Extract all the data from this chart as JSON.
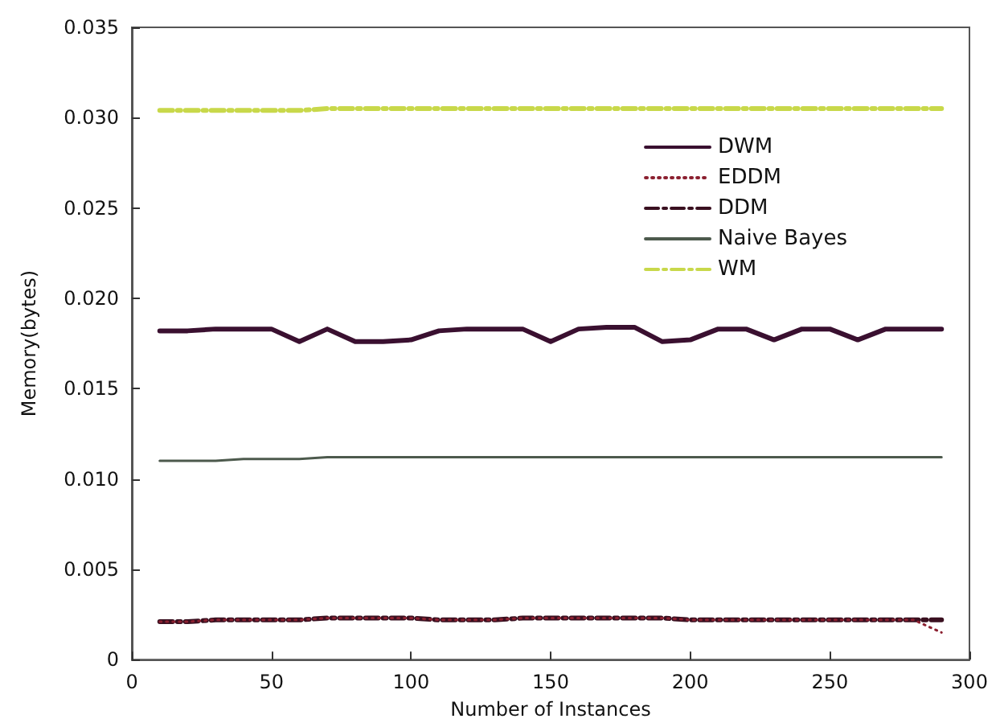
{
  "chart_data": {
    "type": "line",
    "xlabel": "Number of Instances",
    "ylabel": "Memory(bytes)",
    "x": [
      10,
      20,
      30,
      40,
      50,
      60,
      70,
      80,
      90,
      100,
      110,
      120,
      130,
      140,
      150,
      160,
      170,
      180,
      190,
      200,
      210,
      220,
      230,
      240,
      250,
      260,
      270,
      280,
      290
    ],
    "xlim": [
      0,
      300
    ],
    "xticks": [
      0,
      50,
      100,
      150,
      200,
      250,
      300
    ],
    "ylim": [
      0,
      0.035
    ],
    "yticks": [
      0,
      0.005,
      {
        "value": 0.01,
        "label": "0.010"
      },
      0.015,
      {
        "value": 0.02,
        "label": "0.020"
      },
      0.025,
      {
        "value": 0.03,
        "label": "0.030"
      },
      0.035
    ],
    "legend": "right",
    "grid": false,
    "series": [
      {
        "name": "DWM",
        "color": "#3a1030",
        "line_style": "solid",
        "values": [
          0.0182,
          0.0182,
          0.0183,
          0.0183,
          0.0183,
          0.0176,
          0.0183,
          0.0176,
          0.0176,
          0.0177,
          0.0182,
          0.0183,
          0.0183,
          0.0183,
          0.0176,
          0.0183,
          0.0184,
          0.0184,
          0.0176,
          0.0177,
          0.0183,
          0.0183,
          0.0177,
          0.0183,
          0.0183,
          0.0177,
          0.0183,
          0.0183,
          0.0183
        ]
      },
      {
        "name": "EDDM",
        "color": "#8b2030",
        "line_style": "dotted",
        "values": [
          0.0021,
          0.0021,
          0.0022,
          0.0022,
          0.0022,
          0.0022,
          0.0023,
          0.0023,
          0.0023,
          0.0023,
          0.0022,
          0.0022,
          0.0022,
          0.0023,
          0.0023,
          0.0023,
          0.0023,
          0.0023,
          0.0023,
          0.0022,
          0.0022,
          0.0022,
          0.0022,
          0.0022,
          0.0022,
          0.0022,
          0.0022,
          0.0022,
          0.0015
        ]
      },
      {
        "name": "DDM",
        "color": "#3a1020",
        "line_style": "dashed",
        "values": [
          0.0021,
          0.0021,
          0.0022,
          0.0022,
          0.0022,
          0.0022,
          0.0023,
          0.0023,
          0.0023,
          0.0023,
          0.0022,
          0.0022,
          0.0022,
          0.0023,
          0.0023,
          0.0023,
          0.0023,
          0.0023,
          0.0023,
          0.0022,
          0.0022,
          0.0022,
          0.0022,
          0.0022,
          0.0022,
          0.0022,
          0.0022,
          0.0022,
          0.0022
        ]
      },
      {
        "name": "Naive Bayes",
        "color": "#4d5a4d",
        "line_style": "solid",
        "values": [
          0.011,
          0.011,
          0.011,
          0.0111,
          0.0111,
          0.0111,
          0.0112,
          0.0112,
          0.0112,
          0.0112,
          0.0112,
          0.0112,
          0.0112,
          0.0112,
          0.0112,
          0.0112,
          0.0112,
          0.0112,
          0.0112,
          0.0112,
          0.0112,
          0.0112,
          0.0112,
          0.0112,
          0.0112,
          0.0112,
          0.0112,
          0.0112,
          0.0112
        ]
      },
      {
        "name": "WM",
        "color": "#c8d84a",
        "line_style": "dashed",
        "values": [
          0.0304,
          0.0304,
          0.0304,
          0.0304,
          0.0304,
          0.0304,
          0.0305,
          0.0305,
          0.0305,
          0.0305,
          0.0305,
          0.0305,
          0.0305,
          0.0305,
          0.0305,
          0.0305,
          0.0305,
          0.0305,
          0.0305,
          0.0305,
          0.0305,
          0.0305,
          0.0305,
          0.0305,
          0.0305,
          0.0305,
          0.0305,
          0.0305,
          0.0305
        ]
      }
    ]
  }
}
